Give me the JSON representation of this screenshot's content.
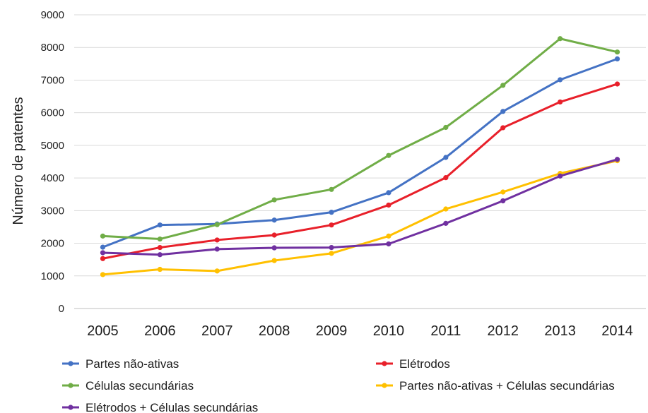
{
  "chart_data": {
    "type": "line",
    "title": "",
    "xlabel": "",
    "ylabel": "Número de patentes",
    "categories": [
      "2005",
      "2006",
      "2007",
      "2008",
      "2009",
      "2010",
      "2011",
      "2012",
      "2013",
      "2014"
    ],
    "ylim": [
      0,
      9000
    ],
    "yticks": [
      "0",
      "1000",
      "2000",
      "3000",
      "4000",
      "5000",
      "6000",
      "7000",
      "8000",
      "9000"
    ],
    "grid": true,
    "legend_position": "bottom",
    "series": [
      {
        "name": "Partes não-ativas",
        "color": "#4472c4",
        "values": [
          1880,
          2560,
          2590,
          2710,
          2950,
          3550,
          4630,
          6040,
          7010,
          7650
        ]
      },
      {
        "name": "Elétrodos",
        "color": "#e8202a",
        "values": [
          1530,
          1870,
          2100,
          2250,
          2560,
          3170,
          4010,
          5540,
          6330,
          6880
        ]
      },
      {
        "name": "Células secundárias",
        "color": "#70ad47",
        "values": [
          2220,
          2130,
          2570,
          3330,
          3650,
          4690,
          5550,
          6840,
          8270,
          7860
        ]
      },
      {
        "name": "Partes não-ativas + Células secundárias",
        "color": "#ffc000",
        "values": [
          1040,
          1200,
          1150,
          1470,
          1690,
          2220,
          3050,
          3570,
          4140,
          4530
        ]
      },
      {
        "name": "Elétrodos + Células secundárias",
        "color": "#7030a0",
        "values": [
          1710,
          1650,
          1820,
          1860,
          1870,
          1980,
          2610,
          3300,
          4060,
          4570
        ]
      }
    ]
  }
}
